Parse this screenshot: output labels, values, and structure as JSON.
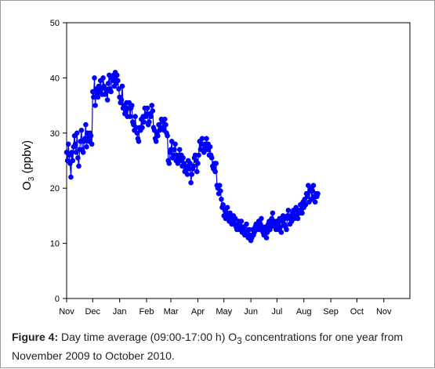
{
  "chart_data": {
    "type": "scatter",
    "ylabel_main": "O",
    "ylabel_sub": "3",
    "ylabel_rest": " (ppbv)",
    "ylim": [
      0,
      50
    ],
    "yticks": [
      0,
      10,
      20,
      30,
      40,
      50
    ],
    "xlim": [
      "2009-11-01",
      "2010-12-01"
    ],
    "xtick_labels": [
      "Nov",
      "Dec",
      "Jan",
      "Feb",
      "Mar",
      "Apr",
      "May",
      "Jun",
      "Jul",
      "Aug",
      "Sep",
      "Oct",
      "Nov"
    ],
    "xtick_dates": [
      "2009-11-01",
      "2009-12-01",
      "2010-01-01",
      "2010-02-01",
      "2010-03-01",
      "2010-04-01",
      "2010-05-01",
      "2010-06-01",
      "2010-07-01",
      "2010-08-01",
      "2010-09-01",
      "2010-10-01",
      "2010-11-01"
    ],
    "grid": false,
    "legend": "none",
    "series_color": "#0000ff",
    "series": [
      {
        "x_start": "2009-11-01",
        "x_step_days": 1,
        "values": [
          26.5,
          25.0,
          28.0,
          26.0,
          24.5,
          22.0,
          26.5,
          25.0,
          27.5,
          29.5,
          28.0,
          26.5,
          30.0,
          25.5,
          24.0,
          27.0,
          28.5,
          30.5,
          27.0,
          26.5,
          28.5,
          29.0,
          31.5,
          27.5,
          30.0,
          29.0,
          28.5,
          30.0,
          29.5,
          28.0,
          37.5,
          36.5,
          40.0,
          35.0,
          38.0,
          37.0,
          36.5,
          38.5,
          37.5,
          39.5,
          38.0,
          37.0,
          40.0,
          38.5,
          37.0,
          38.0,
          37.5,
          36.0,
          39.0,
          40.5,
          38.0,
          37.5,
          40.0,
          39.5,
          40.5,
          38.5,
          41.0,
          39.0,
          40.5,
          39.5,
          38.0,
          36.5,
          35.5,
          36.0,
          38.5,
          34.5,
          35.0,
          33.5,
          34.0,
          35.5,
          33.0,
          34.5,
          35.5,
          33.0,
          34.5,
          35.0,
          32.0,
          31.5,
          30.5,
          33.0,
          31.0,
          30.0,
          29.0,
          28.5,
          31.0,
          30.5,
          32.5,
          31.0,
          33.0,
          32.0,
          34.5,
          33.0,
          33.5,
          34.5,
          31.5,
          32.0,
          33.5,
          33.0,
          35.0,
          34.0,
          31.0,
          30.5,
          29.0,
          28.5,
          30.0,
          29.5,
          31.5,
          30.5,
          31.0,
          32.5,
          32.0,
          31.0,
          30.5,
          32.5,
          31.5,
          30.0,
          29.5,
          25.0,
          24.5,
          26.5,
          27.0,
          28.5,
          25.5,
          26.0,
          27.0,
          28.0,
          25.0,
          26.0,
          24.5,
          25.5,
          27.0,
          25.0,
          26.0,
          24.0,
          25.5,
          24.5,
          23.0,
          23.5,
          24.0,
          22.5,
          25.0,
          23.5,
          24.5,
          21.0,
          22.5,
          23.5,
          24.0,
          25.5,
          26.0,
          25.0,
          23.0,
          24.5,
          26.0,
          28.5,
          27.0,
          28.0,
          29.0,
          27.0,
          26.5,
          28.0,
          27.5,
          29.0,
          27.0,
          28.0,
          26.0,
          27.5,
          26.0,
          25.5,
          24.0,
          23.5,
          24.5,
          23.0,
          24.5,
          20.5,
          20.0,
          19.0,
          20.5,
          19.5,
          18.0,
          16.5,
          17.0,
          15.0,
          16.0,
          14.5,
          15.5,
          16.5,
          15.0,
          14.0,
          15.5,
          14.5,
          13.5,
          14.0,
          15.0,
          13.5,
          14.5,
          13.0,
          12.5,
          13.5,
          14.0,
          12.5,
          13.0,
          14.0,
          12.0,
          13.0,
          12.5,
          11.5,
          12.0,
          13.5,
          12.0,
          11.0,
          12.5,
          11.5,
          10.5,
          11.0,
          12.5,
          11.5,
          12.0,
          13.0,
          13.5,
          12.5,
          13.0,
          14.0,
          12.5,
          13.5,
          14.5,
          13.0,
          12.0,
          11.5,
          12.5,
          13.0,
          11.0,
          12.0,
          13.5,
          14.0,
          12.5,
          13.0,
          14.5,
          15.5,
          13.5,
          14.0,
          13.0,
          12.5,
          14.0,
          13.5,
          12.5,
          14.5,
          13.0,
          12.0,
          14.0,
          15.0,
          13.5,
          14.5,
          13.0,
          12.5,
          15.0,
          16.0,
          14.5,
          13.5,
          15.0,
          14.0,
          15.5,
          16.0,
          14.5,
          15.0,
          16.5,
          15.0,
          14.5,
          16.0,
          15.5,
          17.0,
          16.0,
          15.5,
          17.5,
          16.5,
          18.0,
          17.0,
          19.0,
          18.5,
          20.5,
          17.5,
          19.5,
          20.0,
          18.0,
          19.5,
          20.5,
          18.5,
          17.5,
          19.0,
          18.5,
          19.0
        ]
      }
    ]
  },
  "caption": {
    "label": "Figure 4:",
    "text1": " Day time average (09:00-17:00 h) O",
    "sub": "3",
    "text2": " concentrations for one year from November 2009 to October 2010."
  }
}
